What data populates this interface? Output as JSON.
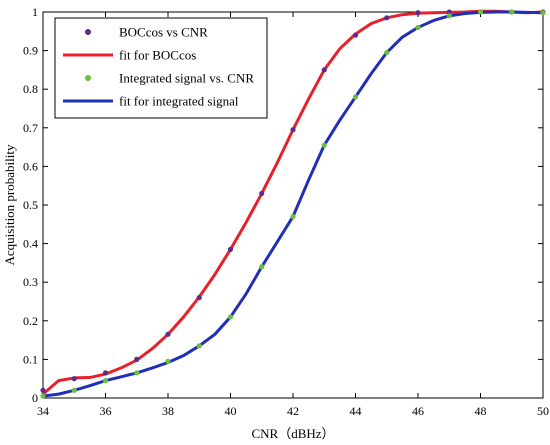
{
  "chart_data": {
    "type": "scatter",
    "xlabel": "CNR（dBHz）",
    "ylabel": "Acquisition probability",
    "xlim": [
      34,
      50
    ],
    "ylim": [
      0,
      1
    ],
    "xticks": [
      "34",
      "36",
      "38",
      "40",
      "42",
      "44",
      "46",
      "48",
      "50"
    ],
    "yticks": [
      "0",
      "0.1",
      "0.2",
      "0.3",
      "0.4",
      "0.5",
      "0.6",
      "0.7",
      "0.8",
      "0.9",
      "1"
    ],
    "grid": false,
    "legend_position": "top-left",
    "series": [
      {
        "name": "BOCcos vs CNR",
        "kind": "markers",
        "color": "#5b2d8e",
        "x": [
          34,
          35,
          36,
          37,
          38,
          39,
          40,
          41,
          42,
          43,
          44,
          45,
          46,
          47,
          48,
          49,
          50
        ],
        "y": [
          0.02,
          0.05,
          0.065,
          0.1,
          0.165,
          0.26,
          0.385,
          0.53,
          0.695,
          0.85,
          0.94,
          0.985,
          0.998,
          1.0,
          1.0,
          1.0,
          1.0
        ]
      },
      {
        "name": "fit for BOCcos",
        "kind": "line",
        "color": "#e8202a",
        "x": [
          34,
          34.5,
          35,
          35.5,
          36,
          36.5,
          37,
          37.5,
          38,
          38.5,
          39,
          39.5,
          40,
          40.5,
          41,
          41.5,
          42,
          42.5,
          43,
          43.5,
          44,
          44.5,
          45,
          45.5,
          46,
          46.5,
          47,
          47.5,
          48,
          48.5,
          49,
          49.5,
          50
        ],
        "y": [
          0.01,
          0.045,
          0.052,
          0.053,
          0.062,
          0.078,
          0.098,
          0.128,
          0.165,
          0.21,
          0.262,
          0.32,
          0.385,
          0.455,
          0.53,
          0.61,
          0.695,
          0.775,
          0.85,
          0.905,
          0.943,
          0.97,
          0.985,
          0.993,
          0.997,
          0.998,
          0.999,
          1.0,
          1.002,
          1.002,
          1.0,
          0.998,
          1.0
        ]
      },
      {
        "name": "Integrated signal vs. CNR",
        "kind": "markers",
        "color": "#6abf3a",
        "x": [
          34,
          35,
          36,
          37,
          38,
          39,
          40,
          41,
          42,
          43,
          44,
          45,
          46,
          47,
          48,
          49,
          50
        ],
        "y": [
          0.005,
          0.02,
          0.045,
          0.065,
          0.095,
          0.135,
          0.21,
          0.34,
          0.47,
          0.655,
          0.78,
          0.895,
          0.96,
          0.99,
          1.0,
          1.0,
          0.998
        ]
      },
      {
        "name": "fit for integrated signal",
        "kind": "line",
        "color": "#1f2fb8",
        "x": [
          34,
          34.5,
          35,
          35.5,
          36,
          36.5,
          37,
          37.5,
          38,
          38.5,
          39,
          39.5,
          40,
          40.5,
          41,
          41.5,
          42,
          42.5,
          43,
          43.5,
          44,
          44.5,
          45,
          45.5,
          46,
          46.5,
          47,
          47.5,
          48,
          48.5,
          49,
          49.5,
          50
        ],
        "y": [
          0.005,
          0.01,
          0.02,
          0.032,
          0.045,
          0.055,
          0.065,
          0.078,
          0.092,
          0.11,
          0.135,
          0.165,
          0.21,
          0.27,
          0.34,
          0.405,
          0.47,
          0.565,
          0.655,
          0.72,
          0.78,
          0.84,
          0.895,
          0.935,
          0.96,
          0.978,
          0.99,
          0.996,
          0.999,
          1.0,
          1.0,
          0.999,
          0.998
        ]
      }
    ]
  }
}
